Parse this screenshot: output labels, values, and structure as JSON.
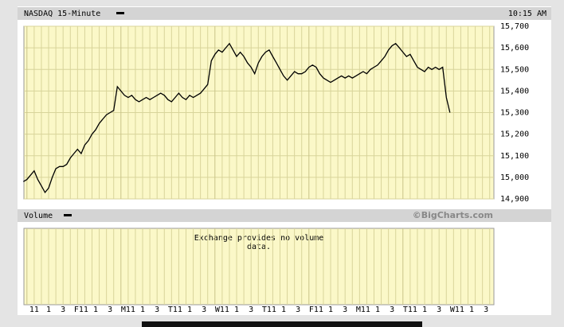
{
  "chart_data": {
    "type": "line",
    "title": "NASDAQ 15-Minute",
    "time_label": "10:15 AM",
    "volume_label": "Volume",
    "credit": "©BigCharts.com",
    "volume_note": "Exchange provides no volume data.",
    "color": "#000000",
    "categories": [
      null,
      null,
      null,
      "11",
      null,
      null,
      null,
      "1",
      null,
      null,
      null,
      "3",
      null,
      null,
      null,
      null,
      "F11",
      null,
      null,
      null,
      "1",
      null,
      null,
      null,
      "3",
      null,
      null,
      null,
      null,
      "M11",
      null,
      null,
      null,
      "1",
      null,
      null,
      null,
      "3",
      null,
      null,
      null,
      null,
      "T11",
      null,
      null,
      null,
      "1",
      null,
      null,
      null,
      "3",
      null,
      null,
      null,
      null,
      "W11",
      null,
      null,
      null,
      "1",
      null,
      null,
      null,
      "3",
      null,
      null,
      null,
      null,
      "T11",
      null,
      null,
      null,
      "1",
      null,
      null,
      null,
      "3",
      null,
      null,
      null,
      null,
      "F11",
      null,
      null,
      null,
      "1",
      null,
      null,
      null,
      "3",
      null,
      null,
      null,
      null,
      "M11",
      null,
      null,
      null,
      "1",
      null,
      null,
      null,
      "3",
      null,
      null,
      null,
      null,
      "T11",
      null,
      null,
      null,
      "1",
      null,
      null,
      null,
      "3",
      null,
      null,
      null,
      null,
      "W11",
      null,
      null,
      null,
      "1",
      null,
      null,
      null,
      "3",
      null
    ],
    "values": [
      14980,
      14990,
      15010,
      15030,
      14990,
      14960,
      14930,
      14950,
      15000,
      15040,
      15050,
      15050,
      15060,
      15090,
      15110,
      15130,
      15110,
      15150,
      15170,
      15200,
      15220,
      15250,
      15270,
      15290,
      15300,
      15310,
      15420,
      15400,
      15380,
      15370,
      15380,
      15360,
      15350,
      15360,
      15370,
      15360,
      15370,
      15380,
      15390,
      15380,
      15360,
      15350,
      15370,
      15390,
      15370,
      15360,
      15380,
      15370,
      15380,
      15390,
      15410,
      15430,
      15540,
      15570,
      15590,
      15580,
      15600,
      15620,
      15590,
      15560,
      15580,
      15560,
      15530,
      15510,
      15480,
      15530,
      15560,
      15580,
      15590,
      15560,
      15530,
      15500,
      15470,
      15450,
      15470,
      15490,
      15480,
      15480,
      15490,
      15510,
      15520,
      15510,
      15480,
      15460,
      15450,
      15440,
      15450,
      15460,
      15470,
      15460,
      15470,
      15460,
      15470,
      15480,
      15490,
      15480,
      15500,
      15510,
      15520,
      15540,
      15560,
      15590,
      15610,
      15620,
      15600,
      15580,
      15560,
      15570,
      15540,
      15510,
      15500,
      15490,
      15510,
      15500,
      15510,
      15500,
      15510,
      15370,
      15300,
      null,
      null,
      null,
      null,
      null,
      null,
      null,
      null,
      null,
      null,
      null
    ],
    "ylim": [
      14900,
      15700
    ],
    "yticks": [
      {
        "value": 14900,
        "label": "14,900"
      },
      {
        "value": 15000,
        "label": "15,000"
      },
      {
        "value": 15100,
        "label": "15,100"
      },
      {
        "value": 15200,
        "label": "15,200"
      },
      {
        "value": 15300,
        "label": "15,300"
      },
      {
        "value": 15400,
        "label": "15,400"
      },
      {
        "value": 15500,
        "label": "15,500"
      },
      {
        "value": 15600,
        "label": "15,600"
      },
      {
        "value": 15700,
        "label": "15,700"
      }
    ],
    "grid": true
  }
}
